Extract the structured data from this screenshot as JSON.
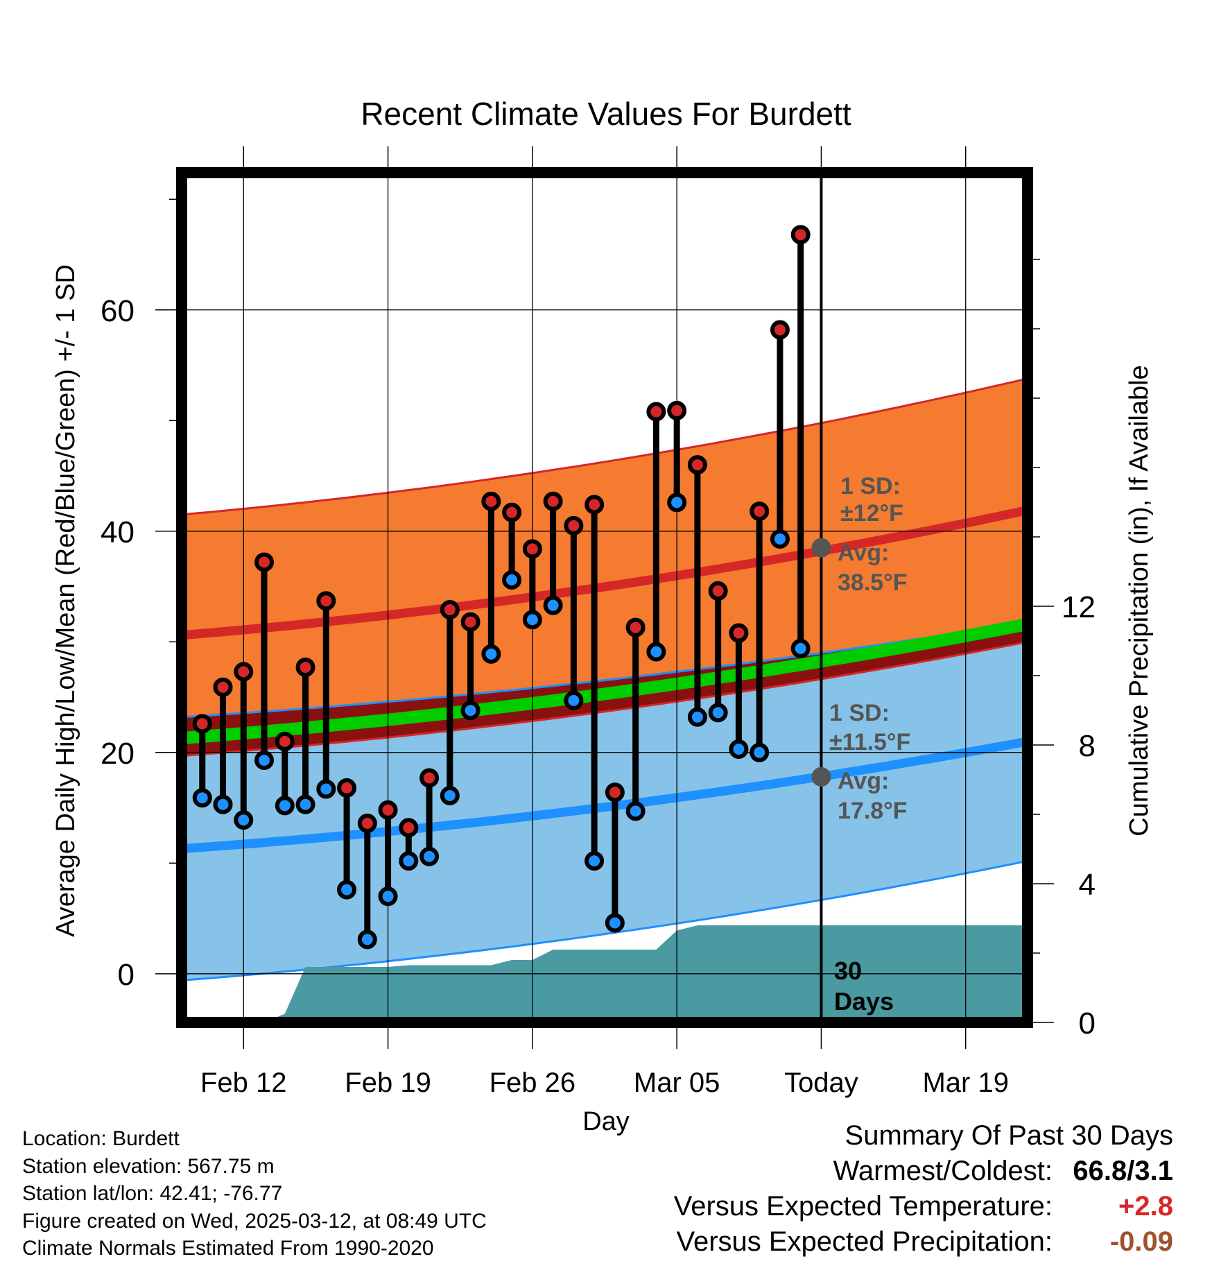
{
  "chart_data": {
    "type": "line",
    "title": "Recent Climate Values For Burdett",
    "xlabel": "Day",
    "ylabel_left": "Average Daily High/Low/Mean (Red/Blue/Green) +/- 1 SD",
    "ylabel_right": "Cumulative Precipitation (in), If Available",
    "x_tick_labels": [
      "Feb 12",
      "Feb 19",
      "Feb 26",
      "Mar 05",
      "Today",
      "Mar 19"
    ],
    "x_tick_dates": [
      "2025-02-12",
      "2025-02-19",
      "2025-02-26",
      "2025-03-05",
      "2025-03-12",
      "2025-03-19"
    ],
    "xlim": [
      "2025-02-09",
      "2025-03-22"
    ],
    "y_left_ticks": [
      0,
      20,
      40,
      60
    ],
    "y_left_lim": [
      -4.4,
      72.4
    ],
    "y_right_ticks": [
      0,
      4,
      8,
      12
    ],
    "y_right_lim": [
      0,
      24.5
    ],
    "grid": true,
    "today_label": "Today",
    "period_label_line1": "30",
    "period_label_line2": "Days",
    "daily": {
      "dates": [
        "2025-02-10",
        "2025-02-11",
        "2025-02-12",
        "2025-02-13",
        "2025-02-14",
        "2025-02-15",
        "2025-02-16",
        "2025-02-17",
        "2025-02-18",
        "2025-02-19",
        "2025-02-20",
        "2025-02-21",
        "2025-02-22",
        "2025-02-23",
        "2025-02-24",
        "2025-02-25",
        "2025-02-26",
        "2025-02-27",
        "2025-02-28",
        "2025-03-01",
        "2025-03-02",
        "2025-03-03",
        "2025-03-04",
        "2025-03-05",
        "2025-03-06",
        "2025-03-07",
        "2025-03-08",
        "2025-03-09",
        "2025-03-10",
        "2025-03-11"
      ],
      "high": [
        22.6,
        25.9,
        27.3,
        37.2,
        21.0,
        27.7,
        33.7,
        16.8,
        13.6,
        14.8,
        13.2,
        17.7,
        32.9,
        31.8,
        42.7,
        41.7,
        38.4,
        42.7,
        40.5,
        42.4,
        16.4,
        31.3,
        50.8,
        50.9,
        46.0,
        34.6,
        30.8,
        41.8,
        58.2,
        66.8
      ],
      "low": [
        15.9,
        15.3,
        13.9,
        19.3,
        15.2,
        15.3,
        16.7,
        7.6,
        3.1,
        7.0,
        10.2,
        10.6,
        16.1,
        23.8,
        28.9,
        35.6,
        32.0,
        33.3,
        24.7,
        10.2,
        4.6,
        14.7,
        29.1,
        42.6,
        23.2,
        23.6,
        20.3,
        20.0,
        39.3,
        29.4
      ]
    },
    "normals": {
      "dates": [
        "2025-02-09",
        "2025-03-22"
      ],
      "avg_high": [
        30.6,
        41.9
      ],
      "avg_low": [
        11.3,
        21.0
      ],
      "avg_mean": [
        21.3,
        31.6
      ],
      "high_sd_upper": [
        41.5,
        53.8
      ],
      "low_sd_lower": [
        -0.6,
        10.2
      ]
    },
    "precipitation_cumulative": {
      "dates": [
        "2025-02-13",
        "2025-02-14",
        "2025-02-15",
        "2025-02-16",
        "2025-02-17",
        "2025-02-18",
        "2025-02-19",
        "2025-02-20",
        "2025-02-21",
        "2025-02-22",
        "2025-02-23",
        "2025-02-24",
        "2025-02-25",
        "2025-02-26",
        "2025-02-27",
        "2025-02-28",
        "2025-03-01",
        "2025-03-02",
        "2025-03-03",
        "2025-03-04",
        "2025-03-05",
        "2025-03-06",
        "2025-03-07",
        "2025-03-12",
        "2025-03-22"
      ],
      "values": [
        0.0,
        0.25,
        1.6,
        1.6,
        1.6,
        1.6,
        1.6,
        1.65,
        1.65,
        1.65,
        1.65,
        1.65,
        1.8,
        1.8,
        2.1,
        2.1,
        2.1,
        2.1,
        2.1,
        2.1,
        2.65,
        2.8,
        2.8,
        2.8,
        2.8
      ]
    },
    "annotations": {
      "high_sd_line1": "1 SD:",
      "high_sd_line2": "±12°F",
      "high_avg_line1": "Avg:",
      "high_avg_line2": "38.5°F",
      "high_avg_today": 38.5,
      "low_sd_line1": "1 SD:",
      "low_sd_line2": "±11.5°F",
      "low_avg_line1": "Avg:",
      "low_avg_line2": "17.8°F",
      "low_avg_today": 17.8
    },
    "colors": {
      "high": "#d62728",
      "low": "#1e90ff",
      "mean": "#00cc00",
      "high_band": "#f47b30",
      "low_band": "#87c3e8",
      "overlap_band": "#8b1010",
      "precip": "#4a9aa2",
      "annotation_text": "#555555"
    }
  },
  "footer": {
    "location": "Location: Burdett",
    "elevation": "Station elevation: 567.75 m",
    "latlon": "Station lat/lon: 42.41; -76.77",
    "created": "Figure created on Wed, 2025-03-12, at 08:49 UTC",
    "normals": "Climate Normals Estimated From 1990-2020"
  },
  "summary": {
    "title": "Summary Of Past 30 Days",
    "warmest_coldest_label": "Warmest/Coldest:",
    "warmest_coldest_value": "66.8/3.1",
    "temp_label": "Versus Expected Temperature:",
    "temp_value": "+2.8",
    "temp_color": "#d62728",
    "precip_label": "Versus Expected Precipitation:",
    "precip_value": "-0.09",
    "precip_color": "#a0522d"
  }
}
